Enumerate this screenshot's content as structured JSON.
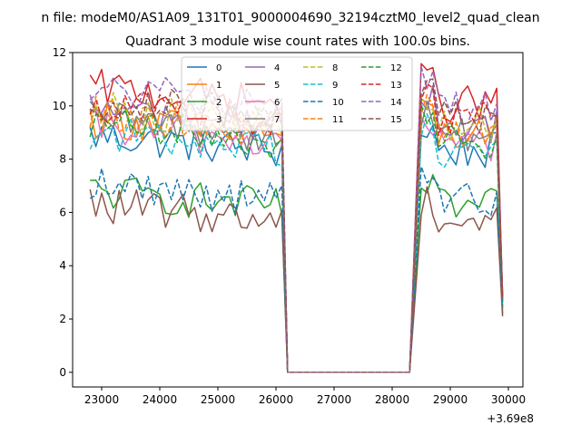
{
  "figure": {
    "suptitle": "n file: modeM0/AS1A09_131T01_9000004690_32194cztM0_level2_quad_clean",
    "offset_label": "+3.69e8"
  },
  "chart_data": {
    "type": "line",
    "title": "Quadrant 3 module wise count rates with 100.0s bins.",
    "xlabel": "",
    "ylabel": "",
    "xlim": [
      22500,
      30250
    ],
    "ylim": [
      -0.55,
      12.0
    ],
    "x_ticks": [
      23000,
      24000,
      25000,
      26000,
      27000,
      28000,
      29000,
      30000
    ],
    "y_ticks": [
      0,
      2,
      4,
      6,
      8,
      10,
      12
    ],
    "grid": false,
    "legend": {
      "placement": "top-center",
      "ncol": 4
    },
    "gap": {
      "start": 26200,
      "end": 28300
    },
    "x_segments": [
      [
        22800,
        26100
      ],
      [
        28500,
        29800
      ]
    ],
    "falloff_end": 29900,
    "series": [
      {
        "name": "0",
        "color": "#1f77b4",
        "dash": "solid",
        "level": 8.3,
        "end": 2.2
      },
      {
        "name": "1",
        "color": "#ff7f0e",
        "dash": "solid",
        "level": 8.9,
        "end": 2.9
      },
      {
        "name": "2",
        "color": "#2ca02c",
        "dash": "solid",
        "level": 6.2,
        "end": 2.4
      },
      {
        "name": "3",
        "color": "#d62728",
        "dash": "solid",
        "level": 10.1,
        "end": 2.7
      },
      {
        "name": "4",
        "color": "#9467bd",
        "dash": "solid",
        "level": 9.3,
        "end": 2.8
      },
      {
        "name": "5",
        "color": "#8c564b",
        "dash": "solid",
        "level": 5.7,
        "end": 2.1
      },
      {
        "name": "6",
        "color": "#e377c2",
        "dash": "solid",
        "level": 8.6,
        "end": 2.6
      },
      {
        "name": "7",
        "color": "#7f7f7f",
        "dash": "solid",
        "level": 8.9,
        "end": 2.7
      },
      {
        "name": "8",
        "color": "#bcbd22",
        "dash": "dashed",
        "level": 9.3,
        "end": 2.8
      },
      {
        "name": "9",
        "color": "#17becf",
        "dash": "dashed",
        "level": 8.4,
        "end": 2.6
      },
      {
        "name": "10",
        "color": "#1f77b4",
        "dash": "dashed",
        "level": 6.5,
        "end": 2.5
      },
      {
        "name": "11",
        "color": "#ff7f0e",
        "dash": "dashed",
        "level": 9.1,
        "end": 2.8
      },
      {
        "name": "12",
        "color": "#2ca02c",
        "dash": "dashed",
        "level": 8.7,
        "end": 2.7
      },
      {
        "name": "13",
        "color": "#d62728",
        "dash": "dashed",
        "level": 9.5,
        "end": 2.9
      },
      {
        "name": "14",
        "color": "#9467bd",
        "dash": "dashed",
        "level": 10.0,
        "end": 3.0
      },
      {
        "name": "15",
        "color": "#8c564b",
        "dash": "dashed",
        "level": 9.6,
        "end": 2.8
      }
    ]
  }
}
